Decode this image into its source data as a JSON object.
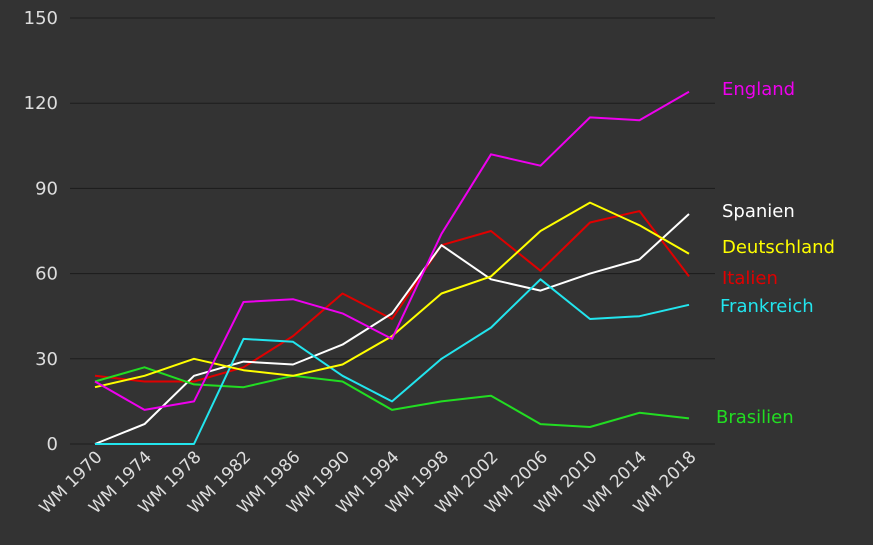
{
  "chart_data": {
    "type": "line",
    "title": "",
    "xlabel": "",
    "ylabel": "",
    "ylim": [
      0,
      150
    ],
    "yticks": [
      0,
      30,
      60,
      90,
      120,
      150
    ],
    "grid": true,
    "legend": "direct labels at right end of each line",
    "categories": [
      "WM 1970",
      "WM 1974",
      "WM 1978",
      "WM 1982",
      "WM 1986",
      "WM 1990",
      "WM 1994",
      "WM 1998",
      "WM 2002",
      "WM 2006",
      "WM 2010",
      "WM 2014",
      "WM 2018"
    ],
    "series": [
      {
        "name": "Italien",
        "color": "#e00000",
        "values": [
          24,
          22,
          22,
          27,
          38,
          53,
          44,
          70,
          75,
          61,
          78,
          82,
          59
        ]
      },
      {
        "name": "Spanien",
        "color": "#ffffff",
        "values": [
          0,
          7,
          24,
          29,
          28,
          35,
          46,
          70,
          58,
          54,
          60,
          65,
          81
        ]
      },
      {
        "name": "Brasilien",
        "color": "#22dd22",
        "values": [
          22,
          27,
          21,
          20,
          24,
          22,
          12,
          15,
          17,
          7,
          6,
          11,
          9
        ]
      },
      {
        "name": "Frankreich",
        "color": "#22e5ee",
        "values": [
          0,
          0,
          0,
          37,
          36,
          24,
          15,
          30,
          41,
          58,
          44,
          45,
          49
        ]
      },
      {
        "name": "Deutschland",
        "color": "#ffff00",
        "values": [
          20,
          24,
          30,
          26,
          24,
          28,
          38,
          53,
          59,
          75,
          85,
          77,
          67
        ]
      },
      {
        "name": "England",
        "color": "#ee00ee",
        "values": [
          22,
          12,
          15,
          50,
          51,
          46,
          37,
          74,
          102,
          98,
          115,
          114,
          124
        ]
      }
    ]
  }
}
